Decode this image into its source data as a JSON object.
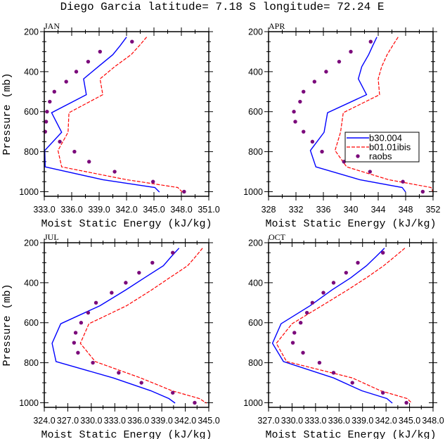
{
  "title": "Diego Garcia  latitude= 7.18 S longitude= 72.24 E",
  "colors": {
    "b30": "#0000ff",
    "b01": "#ff0000",
    "raobs": "#7b0a7b"
  },
  "legend": {
    "entries": [
      "b30.004",
      "b01.01ibis",
      "raobs"
    ],
    "placement": "right-middle of APR panel"
  },
  "chart_data": [
    {
      "type": "line",
      "panel": "JAN",
      "xlabel": "Moist Static Energy (kJ/kg)",
      "ylabel": "Pressure (mb)",
      "xlim": [
        333.0,
        351.0
      ],
      "xticks": [
        "333.0",
        "336.0",
        "339.0",
        "342.0",
        "345.0",
        "348.0",
        "351.0"
      ],
      "ylim": [
        1023,
        200
      ],
      "yticks": [
        "200",
        "400",
        "600",
        "800",
        "1000"
      ],
      "model_levels": [
        227,
        270,
        315,
        375,
        436,
        515,
        605,
        703,
        794,
        876,
        940,
        979,
        1002
      ],
      "obs_levels": [
        250,
        300,
        350,
        400,
        450,
        500,
        550,
        600,
        650,
        700,
        750,
        800,
        850,
        900,
        950,
        1000
      ],
      "series": [
        {
          "name": "b30.004",
          "values": [
            342.0,
            341.3,
            340.5,
            338.9,
            337.3,
            337.6,
            333.8,
            334.9,
            333.05,
            333.1,
            339.4,
            345.1,
            345.6
          ]
        },
        {
          "name": "b01.01ibis",
          "values": [
            344.2,
            343.4,
            342.5,
            340.7,
            339.1,
            339.4,
            335.7,
            335.6,
            334.5,
            334.9,
            342.0,
            347.6,
            348.1
          ]
        },
        {
          "name": "raobs",
          "values": [
            342.6,
            339.1,
            337.8,
            336.5,
            335.4,
            334.1,
            333.6,
            333.3,
            333.2,
            333.1,
            334.7,
            336.3,
            337.9,
            340.7,
            344.9,
            348.3
          ]
        }
      ]
    },
    {
      "type": "line",
      "panel": "APR",
      "xlabel": "Moist Static Energy (kJ/kg)",
      "ylabel": "",
      "xlim": [
        328,
        352
      ],
      "xticks": [
        "328",
        "332",
        "336",
        "340",
        "344",
        "348",
        "352"
      ],
      "ylim": [
        1023,
        200
      ],
      "yticks": [
        "200",
        "400",
        "600",
        "800",
        "1000"
      ],
      "model_levels": [
        227,
        270,
        315,
        375,
        436,
        515,
        605,
        703,
        794,
        876,
        940,
        979,
        1002
      ],
      "obs_levels": [
        250,
        300,
        350,
        400,
        450,
        500,
        550,
        600,
        650,
        700,
        750,
        800,
        850,
        900,
        950,
        1000
      ],
      "series": [
        {
          "name": "b30.004",
          "values": [
            343.8,
            343.2,
            342.6,
            341.6,
            341.1,
            342.3,
            336.6,
            336.1,
            334.1,
            334.9,
            341.3,
            347.5,
            348.0
          ]
        },
        {
          "name": "b01.01ibis",
          "values": [
            346.9,
            346.1,
            345.3,
            344.5,
            344.0,
            344.2,
            338.9,
            338.5,
            337.7,
            339.4,
            345.5,
            351.7,
            352.0
          ]
        },
        {
          "name": "raobs",
          "values": [
            342.9,
            340.0,
            338.3,
            336.4,
            334.7,
            333.1,
            332.6,
            331.7,
            331.9,
            333.1,
            334.4,
            335.8,
            339.0,
            342.8,
            347.6,
            350.5
          ]
        }
      ]
    },
    {
      "type": "line",
      "panel": "JUL",
      "xlabel": "Moist Static Energy (kJ/kg)",
      "ylabel": "Pressure (mb)",
      "xlim": [
        324.0,
        345.0
      ],
      "xticks": [
        "324.0",
        "327.0",
        "330.0",
        "333.0",
        "336.0",
        "339.0",
        "342.0",
        "345.0"
      ],
      "ylim": [
        1023,
        200
      ],
      "yticks": [
        "200",
        "400",
        "600",
        "800",
        "1000"
      ],
      "model_levels": [
        227,
        270,
        315,
        375,
        436,
        515,
        605,
        703,
        794,
        876,
        940,
        979,
        1002
      ],
      "obs_levels": [
        250,
        300,
        350,
        400,
        450,
        500,
        550,
        600,
        650,
        700,
        750,
        800,
        850,
        900,
        950,
        1000
      ],
      "series": [
        {
          "name": "b30.004",
          "values": [
            341.2,
            340.2,
            339.2,
            336.8,
            334.4,
            331.1,
            326.1,
            325.0,
            325.5,
            332.8,
            337.6,
            339.9,
            340.7
          ]
        },
        {
          "name": "b01.01ibis",
          "values": [
            344.2,
            343.3,
            342.3,
            340.0,
            337.7,
            334.5,
            329.7,
            328.6,
            330.5,
            336.3,
            340.3,
            343.8,
            344.7
          ]
        },
        {
          "name": "raobs",
          "values": [
            340.4,
            337.8,
            336.1,
            334.4,
            332.6,
            330.6,
            329.6,
            328.7,
            328.0,
            327.8,
            328.3,
            330.2,
            333.5,
            336.4,
            340.4,
            343.2
          ]
        }
      ]
    },
    {
      "type": "line",
      "panel": "OCT",
      "xlabel": "Moist Static Energy (kJ/kg)",
      "ylabel": "",
      "xlim": [
        327.0,
        348.0
      ],
      "xticks": [
        "327.0",
        "330.0",
        "333.0",
        "336.0",
        "339.0",
        "342.0",
        "345.0",
        "348.0"
      ],
      "ylim": [
        1023,
        200
      ],
      "yticks": [
        "200",
        "400",
        "600",
        "800",
        "1000"
      ],
      "model_levels": [
        227,
        270,
        315,
        375,
        436,
        515,
        605,
        703,
        794,
        876,
        940,
        979,
        1002
      ],
      "obs_levels": [
        250,
        300,
        350,
        400,
        450,
        500,
        550,
        600,
        650,
        700,
        750,
        800,
        850,
        900,
        950,
        1000
      ],
      "series": [
        {
          "name": "b30.004",
          "values": [
            341.8,
            340.7,
            339.5,
            337.5,
            335.1,
            332.3,
            328.6,
            327.5,
            328.9,
            335.3,
            338.9,
            342.1,
            342.8
          ]
        },
        {
          "name": "b01.01ibis",
          "values": [
            344.4,
            343.1,
            341.7,
            339.5,
            337.1,
            333.8,
            330.0,
            328.0,
            329.3,
            337.7,
            341.3,
            344.7,
            345.3
          ]
        },
        {
          "name": "raobs",
          "values": [
            341.6,
            338.4,
            336.9,
            335.3,
            334.0,
            332.6,
            331.9,
            331.1,
            330.3,
            330.1,
            331.4,
            333.5,
            335.3,
            337.7,
            341.6,
            344.6
          ]
        }
      ]
    }
  ]
}
